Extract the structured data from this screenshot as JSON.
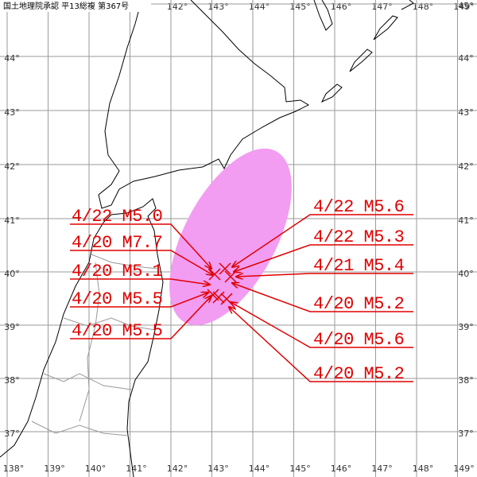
{
  "header": {
    "credit": "国土地理院承認 平13総複 第367号"
  },
  "lon_labels": [
    "138°",
    "139°",
    "140°",
    "141°",
    "142°",
    "143°",
    "144°",
    "145°",
    "146°",
    "147°",
    "148°",
    "149°"
  ],
  "lat_labels": [
    "45°",
    "44°",
    "43°",
    "42°",
    "41°",
    "40°",
    "39°",
    "38°",
    "37°"
  ],
  "left_labels": [
    "4/22 M5.0",
    "4/20 M7.7",
    "4/20 M5.1",
    "4/20 M5.5",
    "4/20 M5.5"
  ],
  "right_labels": [
    "4/22 M5.6",
    "4/22 M5.3",
    "4/21 M5.4",
    "4/20 M5.2",
    "4/20 M5.6",
    "4/20 M5.2"
  ]
}
